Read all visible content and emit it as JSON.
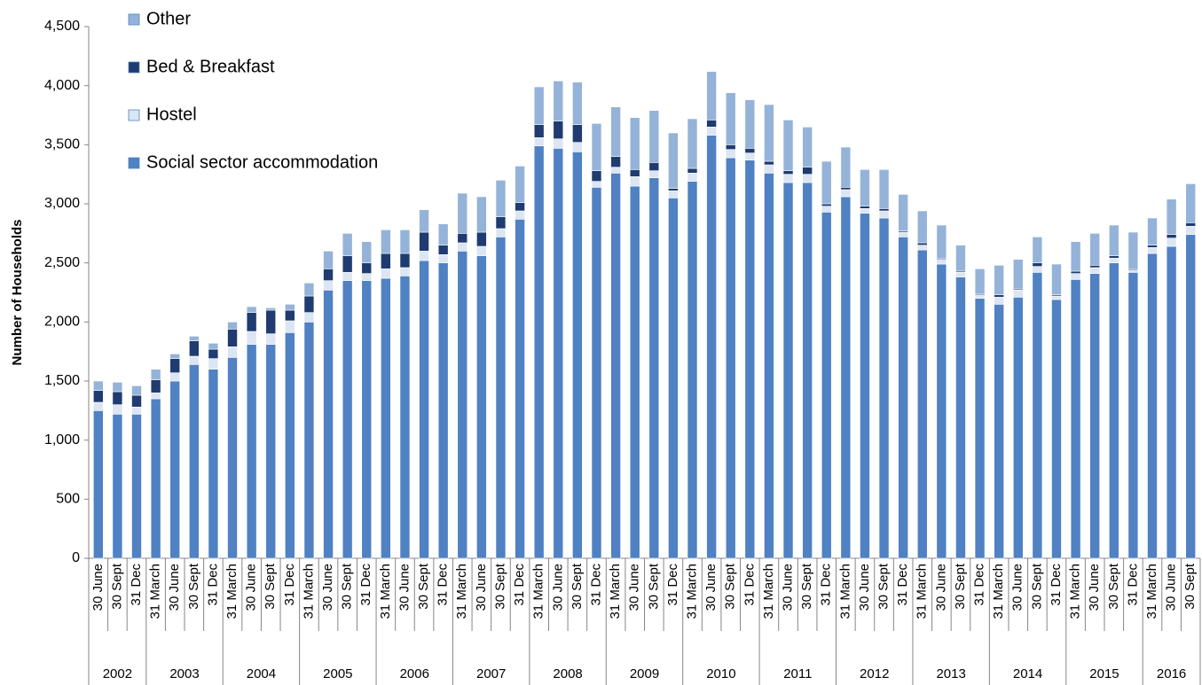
{
  "chart_data": {
    "type": "stacked-bar",
    "y_label": "Number of Households",
    "ylim": [
      0,
      4500
    ],
    "yticks": [
      0,
      500,
      {
        "value": 1000,
        "label": "1,000"
      },
      {
        "value": 1500,
        "label": "1,500"
      },
      {
        "value": 2000,
        "label": "2,000"
      },
      {
        "value": 2500,
        "label": "2,500"
      },
      {
        "value": 3000,
        "label": "3,000"
      },
      {
        "value": 3500,
        "label": "3,500"
      },
      {
        "value": 4000,
        "label": "4,000"
      },
      {
        "value": 4500,
        "label": "4,500"
      }
    ],
    "legend": "top-left",
    "groups": [
      {
        "label": "2002",
        "categories": [
          "30 June",
          "30 Sept",
          "31 Dec"
        ]
      },
      {
        "label": "2003",
        "categories": [
          "31 March",
          "30 June",
          "30 Sept",
          "31 Dec"
        ]
      },
      {
        "label": "2004",
        "categories": [
          "31 March",
          "30 June",
          "30 Sept",
          "31 Dec"
        ]
      },
      {
        "label": "2005",
        "categories": [
          "31 March",
          "30 June",
          "30 Sept",
          "31 Dec"
        ]
      },
      {
        "label": "2006",
        "categories": [
          "31 March",
          "30 June",
          "30 Sept",
          "31 Dec"
        ]
      },
      {
        "label": "2007",
        "categories": [
          "31 March",
          "30 June",
          "30 Sept",
          "31 Dec"
        ]
      },
      {
        "label": "2008",
        "categories": [
          "31 March",
          "30 June",
          "30 Sept",
          "31 Dec"
        ]
      },
      {
        "label": "2009",
        "categories": [
          "31 March",
          "30 June",
          "30 Sept",
          "31 Dec"
        ]
      },
      {
        "label": "2010",
        "categories": [
          "31 March",
          "30 June",
          "30 Sept",
          "31 Dec"
        ]
      },
      {
        "label": "2011",
        "categories": [
          "31 March",
          "30 June",
          "30 Sept",
          "31 Dec"
        ]
      },
      {
        "label": "2012",
        "categories": [
          "31 March",
          "30 June",
          "30 Sept",
          "31 Dec"
        ]
      },
      {
        "label": "2013",
        "categories": [
          "31 March",
          "30 June",
          "30 Sept",
          "31 Dec"
        ]
      },
      {
        "label": "2014",
        "categories": [
          "31 March",
          "30 June",
          "30 Sept",
          "31 Dec"
        ]
      },
      {
        "label": "2015",
        "categories": [
          "31 March",
          "30 June",
          "30 Sept",
          "31 Dec"
        ]
      },
      {
        "label": "2016",
        "categories": [
          "31 March",
          "30 June",
          "30 Sept"
        ]
      }
    ],
    "series": [
      {
        "name": "Social sector accommodation",
        "color": "#4f81c3",
        "values": [
          1250,
          1220,
          1220,
          1350,
          1500,
          1640,
          1600,
          1700,
          1810,
          1810,
          1910,
          2000,
          2270,
          2350,
          2350,
          2370,
          2390,
          2520,
          2500,
          2600,
          2560,
          2720,
          2870,
          3490,
          3470,
          3440,
          3140,
          3260,
          3150,
          3220,
          3050,
          3190,
          3580,
          3390,
          3370,
          3260,
          3180,
          3180,
          2930,
          3060,
          2920,
          2880,
          2720,
          2610,
          2490,
          2380,
          2200,
          2150,
          2210,
          2420,
          2190,
          2360,
          2410,
          2500,
          2420,
          2580,
          2640,
          2740
        ]
      },
      {
        "name": "Hostel",
        "color": "#dbe5f3",
        "values": [
          70,
          80,
          60,
          50,
          70,
          70,
          90,
          90,
          110,
          90,
          100,
          80,
          80,
          70,
          60,
          80,
          70,
          80,
          70,
          70,
          80,
          70,
          70,
          70,
          80,
          80,
          50,
          50,
          80,
          60,
          60,
          70,
          70,
          70,
          60,
          70,
          70,
          70,
          50,
          60,
          40,
          60,
          40,
          40,
          40,
          40,
          30,
          60,
          60,
          50,
          30,
          50,
          50,
          40,
          20,
          50,
          70,
          70
        ]
      },
      {
        "name": "Bed & Breakfast",
        "color": "#1f3b70",
        "values": [
          100,
          110,
          100,
          110,
          120,
          130,
          80,
          150,
          160,
          200,
          90,
          140,
          100,
          140,
          90,
          130,
          120,
          160,
          80,
          80,
          120,
          100,
          70,
          110,
          150,
          150,
          90,
          90,
          60,
          70,
          20,
          40,
          60,
          40,
          40,
          30,
          30,
          60,
          20,
          20,
          20,
          20,
          10,
          20,
          10,
          10,
          10,
          20,
          10,
          30,
          10,
          20,
          20,
          20,
          10,
          20,
          30,
          30
        ]
      },
      {
        "name": "Other",
        "color": "#95b3d9",
        "values": [
          80,
          80,
          80,
          90,
          40,
          40,
          50,
          60,
          50,
          20,
          50,
          110,
          150,
          190,
          180,
          200,
          200,
          190,
          180,
          340,
          300,
          310,
          310,
          320,
          340,
          360,
          400,
          420,
          440,
          440,
          470,
          420,
          410,
          440,
          410,
          480,
          430,
          340,
          360,
          340,
          310,
          330,
          310,
          270,
          280,
          220,
          210,
          250,
          250,
          220,
          260,
          250,
          270,
          260,
          310,
          230,
          300,
          330
        ]
      }
    ]
  }
}
